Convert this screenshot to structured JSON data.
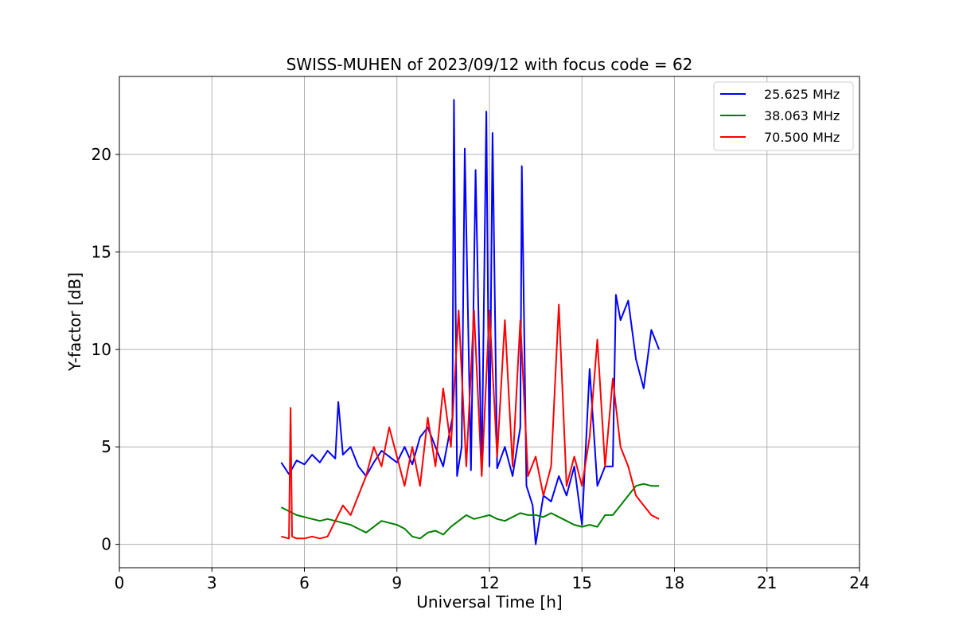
{
  "chart_data": {
    "type": "line",
    "title": "SWISS-MUHEN of 2023/09/12 with focus code = 62",
    "xlabel": "Universal Time [h]",
    "ylabel": "Y-factor [dB]",
    "xlim": [
      0,
      24
    ],
    "ylim": [
      -1.2,
      24
    ],
    "xticks": [
      0,
      3,
      6,
      9,
      12,
      15,
      18,
      21,
      24
    ],
    "yticks": [
      0,
      5,
      10,
      15,
      20
    ],
    "grid": true,
    "legend_position": "top-right",
    "series": [
      {
        "name": "25.625 MHz",
        "color": "#0000ff",
        "x": [
          5.25,
          5.5,
          5.75,
          6.0,
          6.25,
          6.5,
          6.75,
          7.0,
          7.1,
          7.25,
          7.5,
          7.75,
          8.0,
          8.25,
          8.5,
          8.75,
          9.0,
          9.25,
          9.5,
          9.75,
          10.0,
          10.25,
          10.5,
          10.8,
          10.85,
          10.95,
          11.1,
          11.2,
          11.4,
          11.55,
          11.75,
          11.9,
          12.0,
          12.1,
          12.25,
          12.5,
          12.75,
          13.0,
          13.05,
          13.2,
          13.4,
          13.5,
          13.75,
          14.0,
          14.25,
          14.5,
          14.75,
          15.0,
          15.25,
          15.5,
          15.75,
          16.0,
          16.1,
          16.25,
          16.5,
          16.75,
          17.0,
          17.25,
          17.5
        ],
        "y": [
          4.2,
          3.6,
          4.3,
          4.1,
          4.6,
          4.2,
          4.8,
          4.4,
          7.3,
          4.6,
          5.0,
          4.0,
          3.5,
          4.2,
          4.8,
          4.5,
          4.2,
          5.0,
          4.1,
          5.5,
          6.0,
          5.0,
          4.0,
          6.5,
          22.8,
          3.5,
          5.0,
          20.3,
          3.8,
          19.2,
          3.6,
          22.2,
          4.0,
          21.1,
          3.9,
          5.0,
          3.5,
          6.0,
          19.4,
          3.0,
          2.0,
          0.0,
          2.5,
          2.2,
          3.5,
          2.5,
          4.0,
          1.0,
          9.0,
          3.0,
          4.0,
          4.0,
          12.8,
          11.5,
          12.5,
          9.5,
          8.0,
          11.0,
          10.0
        ]
      },
      {
        "name": "38.063 MHz",
        "color": "#008000",
        "x": [
          5.25,
          5.5,
          5.75,
          6.0,
          6.25,
          6.5,
          6.75,
          7.0,
          7.25,
          7.5,
          7.75,
          8.0,
          8.25,
          8.5,
          8.75,
          9.0,
          9.25,
          9.5,
          9.75,
          10.0,
          10.25,
          10.5,
          10.75,
          11.0,
          11.25,
          11.5,
          11.75,
          12.0,
          12.25,
          12.5,
          12.75,
          13.0,
          13.25,
          13.5,
          13.75,
          14.0,
          14.25,
          14.5,
          14.75,
          15.0,
          15.25,
          15.5,
          15.75,
          16.0,
          16.25,
          16.5,
          16.75,
          17.0,
          17.25,
          17.5
        ],
        "y": [
          1.9,
          1.7,
          1.5,
          1.4,
          1.3,
          1.2,
          1.3,
          1.2,
          1.1,
          1.0,
          0.8,
          0.6,
          0.9,
          1.2,
          1.1,
          1.0,
          0.8,
          0.4,
          0.3,
          0.6,
          0.7,
          0.5,
          0.9,
          1.2,
          1.5,
          1.3,
          1.4,
          1.5,
          1.3,
          1.2,
          1.4,
          1.6,
          1.5,
          1.5,
          1.4,
          1.6,
          1.4,
          1.2,
          1.0,
          0.9,
          1.0,
          0.9,
          1.5,
          1.5,
          2.0,
          2.5,
          3.0,
          3.1,
          3.0,
          3.0
        ]
      },
      {
        "name": "70.500 MHz",
        "color": "#ff0000",
        "x": [
          5.25,
          5.5,
          5.55,
          5.6,
          5.75,
          6.0,
          6.25,
          6.5,
          6.75,
          7.0,
          7.25,
          7.5,
          7.75,
          8.0,
          8.25,
          8.5,
          8.75,
          9.0,
          9.25,
          9.5,
          9.75,
          10.0,
          10.25,
          10.5,
          10.75,
          11.0,
          11.25,
          11.5,
          11.75,
          12.0,
          12.25,
          12.5,
          12.75,
          13.0,
          13.25,
          13.5,
          13.75,
          14.0,
          14.25,
          14.5,
          14.75,
          15.0,
          15.25,
          15.5,
          15.75,
          16.0,
          16.25,
          16.5,
          16.75,
          17.0,
          17.25,
          17.5
        ],
        "y": [
          0.4,
          0.3,
          7.0,
          0.4,
          0.3,
          0.3,
          0.4,
          0.3,
          0.4,
          1.2,
          2.0,
          1.5,
          2.5,
          3.5,
          5.0,
          4.0,
          6.0,
          4.5,
          3.0,
          5.0,
          3.0,
          6.5,
          4.0,
          8.0,
          5.0,
          12.0,
          4.0,
          12.0,
          3.5,
          12.0,
          4.5,
          11.5,
          4.0,
          11.5,
          3.5,
          4.5,
          2.5,
          4.0,
          12.3,
          3.0,
          4.5,
          3.0,
          5.5,
          10.5,
          4.0,
          8.5,
          5.0,
          4.0,
          2.5,
          2.0,
          1.5,
          1.3
        ]
      }
    ]
  }
}
